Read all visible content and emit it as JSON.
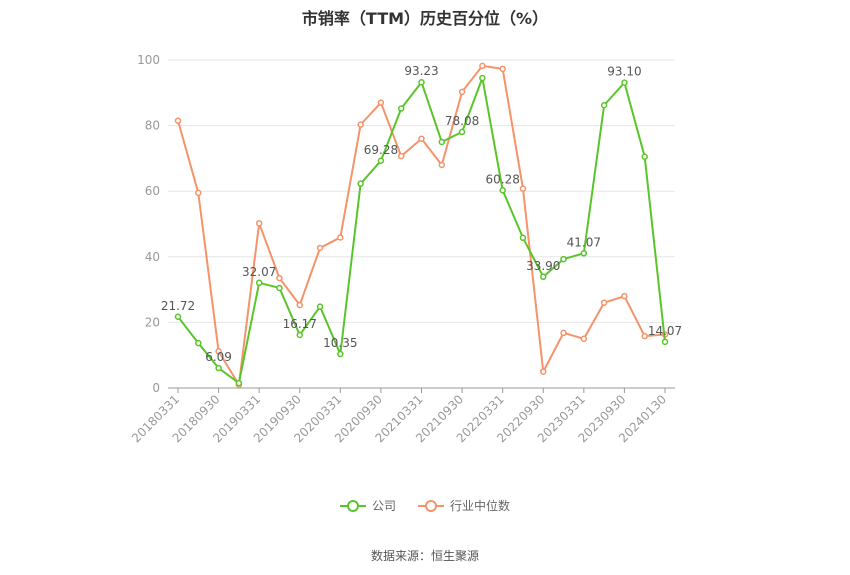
{
  "chart_data": {
    "type": "line",
    "title": "市销率（TTM）历史百分位（%）",
    "ylim": [
      0,
      100
    ],
    "yticks": [
      0,
      20,
      40,
      60,
      80,
      100
    ],
    "grid": true,
    "legend_position": "bottom",
    "x": [
      "20180331",
      "20180630",
      "20180930",
      "20181231",
      "20190331",
      "20190630",
      "20190930",
      "20191231",
      "20200331",
      "20200630",
      "20200930",
      "20201231",
      "20210331",
      "20210630",
      "20210930",
      "20211231",
      "20220331",
      "20220630",
      "20220930",
      "20221231",
      "20230331",
      "20230630",
      "20230930",
      "20231231",
      "20240130"
    ],
    "xtick_labels": [
      "20180331",
      "20180930",
      "20190331",
      "20190930",
      "20200331",
      "20200930",
      "20210331",
      "20210930",
      "20220331",
      "20220930",
      "20230331",
      "20230930",
      "20240130"
    ],
    "series": [
      {
        "name": "公司",
        "color": "#5ac52a",
        "values": [
          21.72,
          13.7,
          6.09,
          1.5,
          32.07,
          30.5,
          16.17,
          24.8,
          10.35,
          62.3,
          69.28,
          85.2,
          93.23,
          75.0,
          78.08,
          94.5,
          60.28,
          45.8,
          33.9,
          39.3,
          41.07,
          86.2,
          93.1,
          70.5,
          14.07
        ],
        "labels": {
          "0": "21.72",
          "2": "6.09",
          "4": "32.07",
          "6": "16.17",
          "8": "10.35",
          "10": "69.28",
          "12": "93.23",
          "14": "78.08",
          "16": "60.28",
          "18": "33.90",
          "20": "41.07",
          "22": "93.10",
          "24": "14.07"
        }
      },
      {
        "name": "行业中位数",
        "color": "#f5936a",
        "values": [
          81.5,
          59.5,
          11.2,
          1.0,
          50.2,
          33.5,
          25.3,
          42.7,
          45.9,
          80.3,
          87.0,
          70.7,
          76.0,
          68.0,
          90.3,
          98.2,
          97.3,
          60.8,
          5.0,
          16.8,
          15.0,
          26.0,
          28.0,
          15.8,
          16.3
        ]
      }
    ]
  },
  "source_text": "数据来源：恒生聚源"
}
